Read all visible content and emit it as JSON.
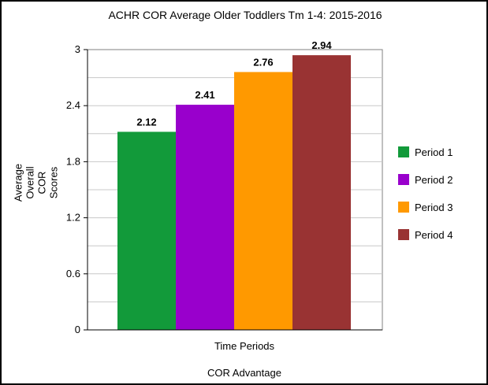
{
  "chart_data": {
    "type": "bar",
    "title": "ACHR COR Average Older Toddlers Tm 1-4:  2015-2016",
    "xlabel": "Time Periods",
    "ylabel": [
      "Average",
      "Overall",
      "COR",
      "Scores"
    ],
    "footer": "COR Advantage",
    "ylim": [
      0,
      3
    ],
    "yticks": [
      "0",
      "0.6",
      "1.2",
      "1.8",
      "2.4",
      "3"
    ],
    "ytick_values": [
      0,
      0.6,
      1.2,
      1.8,
      2.4,
      3
    ],
    "grid": true,
    "legend_position": "right",
    "series": [
      {
        "name": "Period 1",
        "value": 2.12,
        "label": "2.12",
        "color": "#129a3a"
      },
      {
        "name": "Period 2",
        "value": 2.41,
        "label": "2.41",
        "color": "#9900cc"
      },
      {
        "name": "Period 3",
        "value": 2.76,
        "label": "2.76",
        "color": "#ff9900"
      },
      {
        "name": "Period 4",
        "value": 2.94,
        "label": "2.94",
        "color": "#993333"
      }
    ]
  }
}
